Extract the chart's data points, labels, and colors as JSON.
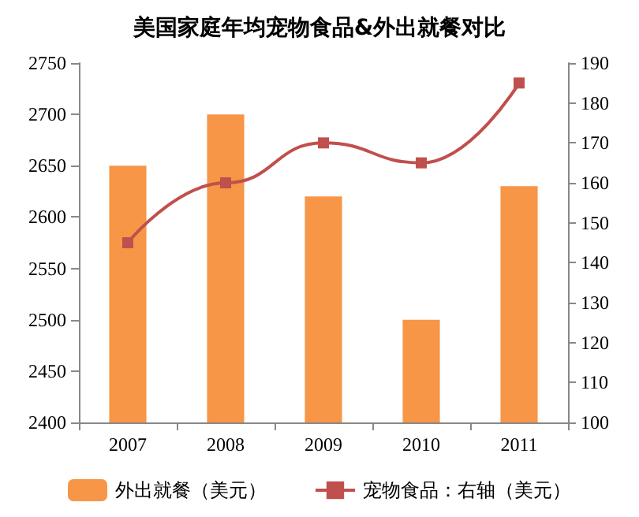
{
  "chart_data": {
    "type": "bar",
    "title": "美国家庭年均宠物食品&外出就餐对比",
    "categories": [
      "2007",
      "2008",
      "2009",
      "2010",
      "2011"
    ],
    "series": [
      {
        "name": "外出就餐（美元）",
        "color": "#f79646",
        "values": [
          2650,
          2700,
          2620,
          2500,
          2630
        ]
      },
      {
        "name": "宠物食品：右轴（美元）",
        "type": "line",
        "axis": "y2",
        "color": "#c0504d",
        "marker": "square",
        "values": [
          145,
          160,
          170,
          165,
          185
        ]
      }
    ],
    "ylim": [
      2400,
      2750
    ],
    "yticks": [
      2400,
      2450,
      2500,
      2550,
      2600,
      2650,
      2700,
      2750
    ],
    "y2lim": [
      100,
      190
    ],
    "y2ticks": [
      100,
      110,
      120,
      130,
      140,
      150,
      160,
      170,
      180,
      190
    ],
    "legend": "bottom",
    "grid": false
  }
}
